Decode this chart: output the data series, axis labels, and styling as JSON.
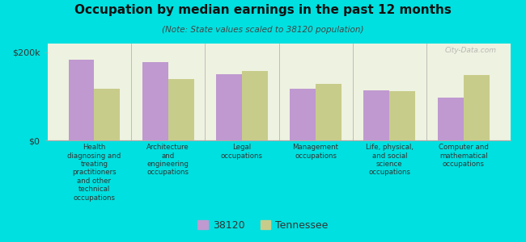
{
  "title": "Occupation by median earnings in the past 12 months",
  "subtitle": "(Note: State values scaled to 38120 population)",
  "categories": [
    "Health\ndiagnosing and\ntreating\npractitioners\nand other\ntechnical\noccupations",
    "Architecture\nand\nengineering\noccupations",
    "Legal\noccupations",
    "Management\noccupations",
    "Life, physical,\nand social\nscience\noccupations",
    "Computer and\nmathematical\noccupations"
  ],
  "values_38120": [
    183000,
    178000,
    150000,
    118000,
    113000,
    97000
  ],
  "values_tennessee": [
    118000,
    140000,
    158000,
    128000,
    112000,
    148000
  ],
  "color_38120": "#bf99d0",
  "color_tennessee": "#c8cc8a",
  "background_color": "#00e0e0",
  "plot_bg_color": "#eef2e0",
  "ylim": [
    0,
    220000
  ],
  "ylabel_ticks": [
    0,
    200000
  ],
  "bar_width": 0.35,
  "legend_label_38120": "38120",
  "legend_label_tennessee": "Tennessee",
  "watermark": "City-Data.com"
}
